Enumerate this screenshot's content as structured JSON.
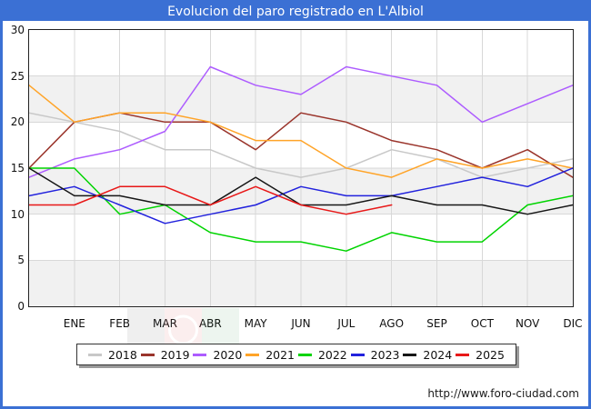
{
  "title": "Evolucion del paro registrado en L'Albiol",
  "footer_url": "http://www.foro-ciudad.com",
  "frame_color": "#3b70d4",
  "chart_data": {
    "type": "line",
    "title": "Evolucion del paro registrado en L'Albiol",
    "categories": [
      "",
      "ENE",
      "FEB",
      "MAR",
      "ABR",
      "MAY",
      "JUN",
      "JUL",
      "AGO",
      "SEP",
      "OCT",
      "NOV",
      "DIC"
    ],
    "x_note": "First point of each series is drawn at the left axis edge (unlabeled, previous December); month labels sit under the 12 following gridline points.",
    "ylim": [
      0,
      30
    ],
    "yticks": [
      0,
      5,
      10,
      15,
      20,
      25,
      30
    ],
    "grid": true,
    "gridline_color": "#d8d8d8",
    "band_fill": "#f1f1f1",
    "plot_border_color": "#222222",
    "legend_position": "bottom",
    "series": [
      {
        "name": "2018",
        "color": "#c8c8c8",
        "values": [
          21,
          20,
          19,
          17,
          17,
          15,
          14,
          15,
          17,
          16,
          14,
          15,
          16
        ]
      },
      {
        "name": "2019",
        "color": "#9a342b",
        "values": [
          15,
          20,
          21,
          20,
          20,
          17,
          21,
          20,
          18,
          17,
          15,
          17,
          14
        ]
      },
      {
        "name": "2020",
        "color": "#ad5cff",
        "values": [
          14,
          16,
          17,
          19,
          26,
          24,
          23,
          26,
          25,
          24,
          20,
          22,
          24
        ]
      },
      {
        "name": "2021",
        "color": "#ffa428",
        "values": [
          24,
          20,
          21,
          21,
          20,
          18,
          18,
          15,
          14,
          16,
          15,
          16,
          15
        ]
      },
      {
        "name": "2022",
        "color": "#00d400",
        "values": [
          15,
          15,
          10,
          11,
          8,
          7,
          7,
          6,
          8,
          7,
          7,
          11,
          12
        ]
      },
      {
        "name": "2023",
        "color": "#2222dd",
        "values": [
          12,
          13,
          11,
          9,
          10,
          11,
          13,
          12,
          12,
          13,
          14,
          13,
          15
        ]
      },
      {
        "name": "2024",
        "color": "#161616",
        "values": [
          15,
          12,
          12,
          11,
          11,
          14,
          11,
          11,
          12,
          11,
          11,
          10,
          11
        ]
      },
      {
        "name": "2025",
        "color": "#e81818",
        "values": [
          11,
          11,
          13,
          13,
          11,
          13,
          11,
          10,
          11
        ]
      }
    ]
  }
}
